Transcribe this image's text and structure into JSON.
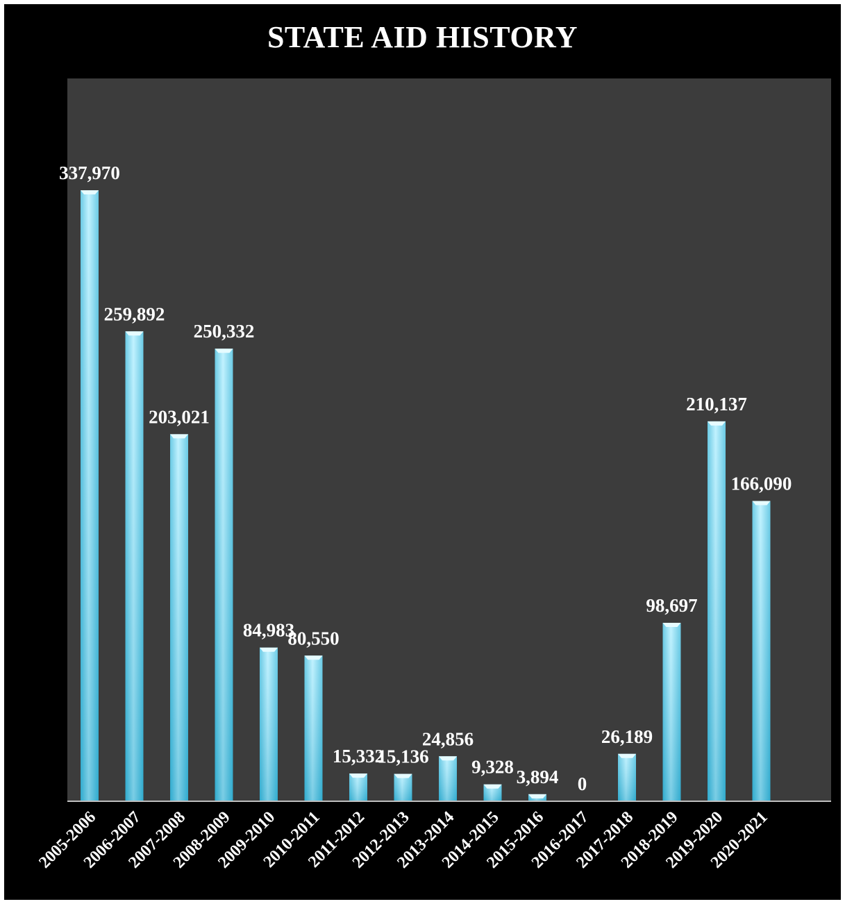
{
  "chart_data": {
    "type": "bar",
    "title": "STATE AID HISTORY",
    "xlabel": "",
    "ylabel": "",
    "categories": [
      "2005-2006",
      "2006-2007",
      "2007-2008",
      "2008-2009",
      "2009-2010",
      "2010-2011",
      "2011-2012",
      "2012-2013",
      "2013-2014",
      "2014-2015",
      "2015-2016",
      "2016-2017",
      "2017-2018",
      "2018-2019",
      "2019-2020",
      "2020-2021"
    ],
    "values": [
      337970,
      259892,
      203021,
      250332,
      84983,
      80550,
      15332,
      15136,
      24856,
      9328,
      3894,
      0,
      26189,
      98697,
      210137,
      166090
    ],
    "value_labels": [
      "337,970",
      "259,892",
      "203,021",
      "250,332",
      "84,983",
      "80,550",
      "15,332",
      "15,136",
      "24,856",
      "9,328",
      "3,894",
      "0",
      "26,189",
      "98,697",
      "210,137",
      "166,090"
    ],
    "ylim": [
      0,
      400000
    ],
    "grid": false,
    "legend": "none",
    "colors": {
      "frame": "#000000",
      "plot_area": "#3c3c3c",
      "bar_light": "#aeeeff",
      "bar_dark": "#3bb9dc",
      "text": "#ffffff",
      "axis": "#bfbfbf"
    }
  }
}
